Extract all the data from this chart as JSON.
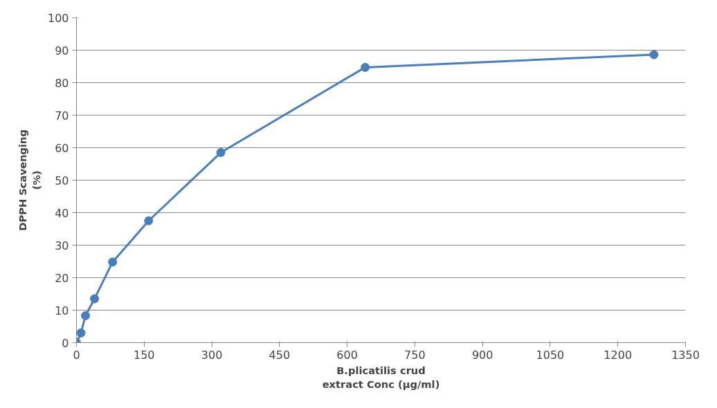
{
  "chart_data": {
    "type": "line",
    "xlabel": "B.plicatilis crud\nextract Conc (µg/ml)",
    "ylabel": "DPPH Scavenging\n(%)",
    "x": [
      0,
      10,
      20,
      40,
      80,
      160,
      320,
      640,
      1280
    ],
    "series": [
      {
        "color": "#4a7ebb",
        "values": [
          0,
          3,
          8.3,
          13.5,
          24.8,
          37.5,
          58.5,
          84.7,
          88.6
        ]
      }
    ],
    "xlim": [
      0,
      1350
    ],
    "xticks": [
      0,
      150,
      300,
      450,
      600,
      750,
      900,
      1050,
      1200,
      1350
    ],
    "ylim": [
      0,
      100
    ],
    "yticks": [
      0,
      10,
      20,
      30,
      40,
      50,
      60,
      70,
      80,
      90,
      100
    ],
    "grid": "y",
    "marker": "circle",
    "line_style": "solid"
  }
}
